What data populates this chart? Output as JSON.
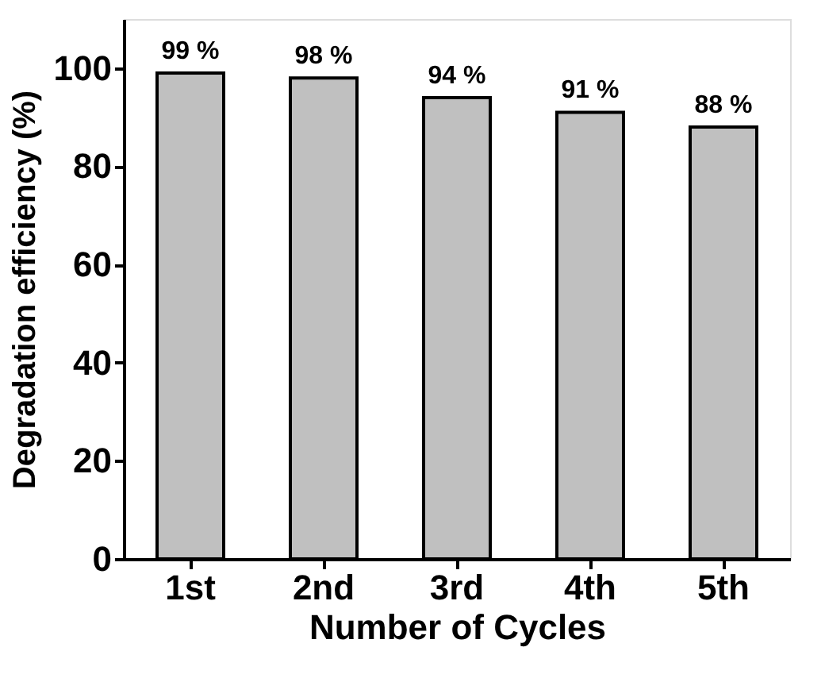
{
  "chart_data": {
    "type": "bar",
    "xlabel": "Number of Cycles",
    "ylabel": "Degradation efficiency (%)",
    "categories": [
      "1st",
      "2nd",
      "3rd",
      "4th",
      "5th"
    ],
    "values": [
      99,
      98,
      94,
      91,
      88
    ],
    "value_labels": [
      "99 %",
      "98 %",
      "94 %",
      "91 %",
      "88 %"
    ],
    "color": "#c0c0c0",
    "ylim": [
      0,
      110
    ],
    "yticks": [
      0,
      20,
      40,
      60,
      80,
      100
    ],
    "grid": false
  }
}
